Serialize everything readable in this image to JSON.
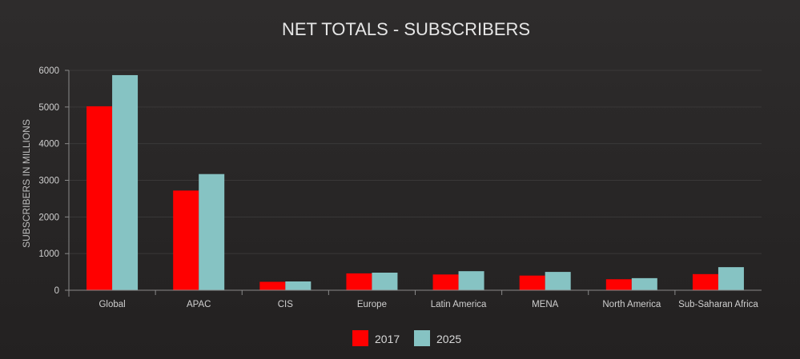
{
  "chart_data": {
    "type": "bar",
    "title": "NET TOTALS - SUBSCRIBERS",
    "xlabel": "",
    "ylabel": "SUBSCRIBERS IN MILLIONS",
    "ylim": [
      0,
      6000
    ],
    "yticks": [
      0,
      1000,
      2000,
      3000,
      4000,
      5000,
      6000
    ],
    "grid": true,
    "legend_position": "bottom-center",
    "categories": [
      "Global",
      "APAC",
      "CIS",
      "Europe",
      "Latin America",
      "MENA",
      "North America",
      "Sub-Saharan Africa"
    ],
    "series": [
      {
        "name": "2017",
        "color": "#ff0000",
        "values": [
          5020,
          2720,
          230,
          460,
          430,
          400,
          300,
          440
        ]
      },
      {
        "name": "2025",
        "color": "#86c3c3",
        "values": [
          5870,
          3170,
          240,
          480,
          520,
          500,
          330,
          630
        ]
      }
    ]
  }
}
